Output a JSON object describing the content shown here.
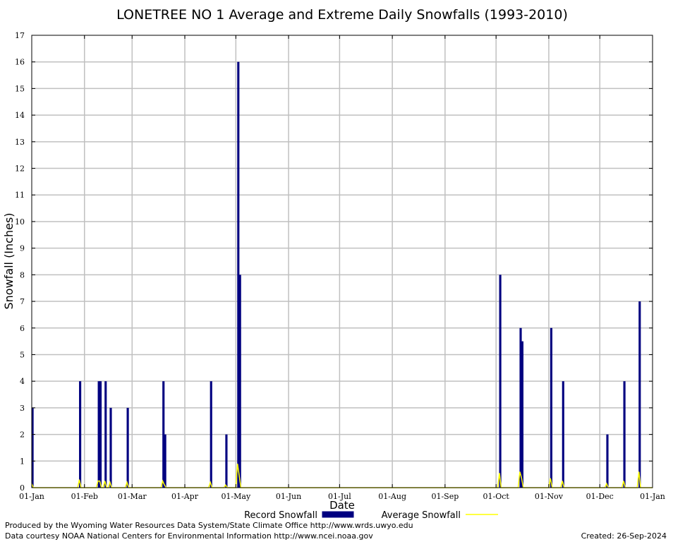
{
  "chart_data": {
    "type": "bar",
    "title": "LONETREE NO 1 Average and Extreme Daily Snowfalls (1993-2010)",
    "xlabel": "Date",
    "ylabel": "Snowfall (Inches)",
    "ylim": [
      0,
      17
    ],
    "yticks": [
      0,
      1,
      2,
      3,
      4,
      5,
      6,
      7,
      8,
      9,
      10,
      11,
      12,
      13,
      14,
      15,
      16,
      17
    ],
    "xlim": [
      1,
      366
    ],
    "xticks": [
      {
        "day": 1,
        "label": "01-Jan"
      },
      {
        "day": 32,
        "label": "01-Feb"
      },
      {
        "day": 60,
        "label": "01-Mar"
      },
      {
        "day": 91,
        "label": "01-Apr"
      },
      {
        "day": 121,
        "label": "01-May"
      },
      {
        "day": 152,
        "label": "01-Jun"
      },
      {
        "day": 182,
        "label": "01-Jul"
      },
      {
        "day": 213,
        "label": "01-Aug"
      },
      {
        "day": 244,
        "label": "01-Sep"
      },
      {
        "day": 274,
        "label": "01-Oct"
      },
      {
        "day": 305,
        "label": "01-Nov"
      },
      {
        "day": 335,
        "label": "01-Dec"
      },
      {
        "day": 366,
        "label": "01-Jan"
      }
    ],
    "grid": true,
    "series": [
      {
        "name": "Record Snowfall",
        "style": "bar",
        "color": "#000080",
        "points": [
          {
            "day": 1,
            "value": 3
          },
          {
            "day": 29,
            "value": 4
          },
          {
            "day": 40,
            "value": 4
          },
          {
            "day": 41,
            "value": 4
          },
          {
            "day": 44,
            "value": 4
          },
          {
            "day": 47,
            "value": 3
          },
          {
            "day": 57,
            "value": 3
          },
          {
            "day": 78,
            "value": 4
          },
          {
            "day": 79,
            "value": 2
          },
          {
            "day": 106,
            "value": 4
          },
          {
            "day": 115,
            "value": 2
          },
          {
            "day": 122,
            "value": 16
          },
          {
            "day": 123,
            "value": 8
          },
          {
            "day": 276,
            "value": 8
          },
          {
            "day": 288,
            "value": 6
          },
          {
            "day": 289,
            "value": 5.5
          },
          {
            "day": 306,
            "value": 6
          },
          {
            "day": 313,
            "value": 4
          },
          {
            "day": 339,
            "value": 2
          },
          {
            "day": 349,
            "value": 4
          },
          {
            "day": 358,
            "value": 7
          }
        ]
      },
      {
        "name": "Average Snowfall",
        "style": "line",
        "color": "#ffff00",
        "points": [
          {
            "day": 1,
            "value": 0.15
          },
          {
            "day": 2,
            "value": 0
          },
          {
            "day": 28,
            "value": 0
          },
          {
            "day": 29,
            "value": 0.3
          },
          {
            "day": 30,
            "value": 0
          },
          {
            "day": 39,
            "value": 0
          },
          {
            "day": 40,
            "value": 0.25
          },
          {
            "day": 41,
            "value": 0.25
          },
          {
            "day": 42,
            "value": 0
          },
          {
            "day": 43,
            "value": 0
          },
          {
            "day": 44,
            "value": 0.25
          },
          {
            "day": 45,
            "value": 0
          },
          {
            "day": 46,
            "value": 0
          },
          {
            "day": 47,
            "value": 0.2
          },
          {
            "day": 48,
            "value": 0
          },
          {
            "day": 56,
            "value": 0
          },
          {
            "day": 57,
            "value": 0.2
          },
          {
            "day": 58,
            "value": 0
          },
          {
            "day": 77,
            "value": 0
          },
          {
            "day": 78,
            "value": 0.25
          },
          {
            "day": 79,
            "value": 0.1
          },
          {
            "day": 80,
            "value": 0
          },
          {
            "day": 105,
            "value": 0
          },
          {
            "day": 106,
            "value": 0.2
          },
          {
            "day": 107,
            "value": 0
          },
          {
            "day": 114,
            "value": 0
          },
          {
            "day": 115,
            "value": 0.1
          },
          {
            "day": 116,
            "value": 0
          },
          {
            "day": 121,
            "value": 0
          },
          {
            "day": 122,
            "value": 0.9
          },
          {
            "day": 123,
            "value": 0.45
          },
          {
            "day": 124,
            "value": 0
          },
          {
            "day": 275,
            "value": 0
          },
          {
            "day": 276,
            "value": 0.55
          },
          {
            "day": 277,
            "value": 0
          },
          {
            "day": 287,
            "value": 0
          },
          {
            "day": 288,
            "value": 0.6
          },
          {
            "day": 289,
            "value": 0.35
          },
          {
            "day": 290,
            "value": 0
          },
          {
            "day": 305,
            "value": 0
          },
          {
            "day": 306,
            "value": 0.35
          },
          {
            "day": 307,
            "value": 0
          },
          {
            "day": 312,
            "value": 0
          },
          {
            "day": 313,
            "value": 0.25
          },
          {
            "day": 314,
            "value": 0
          },
          {
            "day": 338,
            "value": 0
          },
          {
            "day": 339,
            "value": 0.15
          },
          {
            "day": 340,
            "value": 0
          },
          {
            "day": 348,
            "value": 0
          },
          {
            "day": 349,
            "value": 0.25
          },
          {
            "day": 350,
            "value": 0
          },
          {
            "day": 357,
            "value": 0
          },
          {
            "day": 358,
            "value": 0.6
          },
          {
            "day": 359,
            "value": 0
          },
          {
            "day": 366,
            "value": 0
          }
        ]
      }
    ],
    "legend": {
      "placement": "bottom-center",
      "record_label": "Record Snowfall",
      "average_label": "Average Snowfall"
    }
  },
  "footer": {
    "produced_by": "Produced by the Wyoming Water Resources Data System/State Climate Office http://www.wrds.uwyo.edu",
    "data_courtesy": "Data courtesy NOAA National Centers for Environmental Information http://www.ncei.noaa.gov",
    "created": "Created:  26-Sep-2024"
  }
}
